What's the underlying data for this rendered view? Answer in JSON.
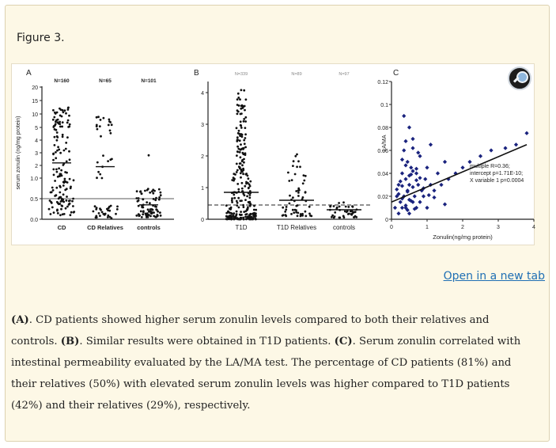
{
  "figure": {
    "title": "Figure 3.",
    "open_link": "Open in a new tab",
    "zoom_icon": "magnifier-icon"
  },
  "caption": {
    "a_label": "(A)",
    "a_text": ". CD patients showed higher serum zonulin levels compared to both their relatives and controls. ",
    "b_label": "(B)",
    "b_text": ". Similar results were obtained in T1D patients. ",
    "c_label": "(C)",
    "c_text": ". Serum zonulin correlated with intestinal permeability evaluated by the LA/MA test. The percentage of CD patients (81%) and their relatives (50%) with elevated serum zonulin levels was higher compared to T1D patients (42%) and their relatives (29%), respectively."
  },
  "chart_data": [
    {
      "panel": "A",
      "type": "scatter",
      "ylabel": "serum zonulin (ng/mg protein)",
      "yticks": [
        "0.0",
        "0.5",
        "1.0",
        "2",
        "3",
        "4",
        "5",
        "10",
        "15",
        "20"
      ],
      "categories": [
        "CD",
        "CD Relatives",
        "controls"
      ],
      "n_labels": [
        "N=160",
        "N=65",
        "N=101"
      ],
      "means": [
        2.2,
        1.9,
        0.35
      ],
      "threshold": 0.5
    },
    {
      "panel": "B",
      "type": "scatter",
      "yticks": [
        "0",
        "1",
        "2",
        "3",
        "4"
      ],
      "categories": [
        "T1D",
        "T1D Relatives",
        "controls"
      ],
      "n_labels": [
        "N=339",
        "N=89",
        "N=97"
      ],
      "means": [
        0.85,
        0.6,
        0.3
      ],
      "threshold": 0.45
    },
    {
      "panel": "C",
      "type": "scatter",
      "xlabel": "Zonulin(ng/mg protein)",
      "ylabel": "LA/MA",
      "xticks": [
        "0",
        "1",
        "2",
        "3",
        "4"
      ],
      "yticks": [
        "0",
        "0.02",
        "0.04",
        "0.06",
        "0.08",
        "0.1",
        "0.12"
      ],
      "xlim": [
        0,
        4
      ],
      "ylim": [
        0,
        0.12
      ],
      "annotation": "multiple R=0.36; intercept p=1.71E-10; X variable 1 p=0.0004",
      "fit": {
        "x": [
          0,
          3.8
        ],
        "y": [
          0.015,
          0.065
        ]
      },
      "points": {
        "x": [
          0.1,
          0.15,
          0.2,
          0.2,
          0.25,
          0.3,
          0.3,
          0.35,
          0.35,
          0.4,
          0.4,
          0.45,
          0.45,
          0.5,
          0.5,
          0.55,
          0.6,
          0.6,
          0.65,
          0.7,
          0.7,
          0.75,
          0.8,
          0.8,
          0.85,
          0.9,
          0.95,
          1.0,
          1.0,
          1.1,
          1.1,
          1.2,
          1.3,
          1.4,
          1.5,
          1.6,
          1.8,
          2.0,
          2.2,
          2.5,
          2.8,
          3.2,
          3.5,
          3.8,
          0.2,
          0.3,
          0.4,
          0.5,
          0.6,
          0.7,
          0.3,
          0.4,
          0.5,
          0.6,
          0.35,
          0.45,
          0.55,
          0.25,
          0.65,
          0.75,
          0.9,
          1.05,
          0.15,
          0.5,
          0.4,
          0.3,
          0.6,
          0.8,
          1.2,
          1.5,
          0.45,
          0.55,
          0.7
        ],
        "y": [
          0.01,
          0.02,
          0.005,
          0.03,
          0.015,
          0.01,
          0.04,
          0.02,
          0.06,
          0.01,
          0.035,
          0.025,
          0.05,
          0.005,
          0.03,
          0.045,
          0.015,
          0.07,
          0.02,
          0.01,
          0.04,
          0.03,
          0.015,
          0.055,
          0.025,
          0.02,
          0.035,
          0.01,
          0.045,
          0.03,
          0.065,
          0.025,
          0.04,
          0.03,
          0.05,
          0.035,
          0.04,
          0.045,
          0.05,
          0.055,
          0.06,
          0.062,
          0.065,
          0.075,
          0.022,
          0.018,
          0.012,
          0.038,
          0.028,
          0.034,
          0.052,
          0.068,
          0.08,
          0.042,
          0.09,
          0.024,
          0.016,
          0.033,
          0.009,
          0.058,
          0.027,
          0.021,
          0.026,
          0.017,
          0.047,
          0.029,
          0.062,
          0.036,
          0.019,
          0.013,
          0.008,
          0.039,
          0.044
        ]
      }
    }
  ]
}
